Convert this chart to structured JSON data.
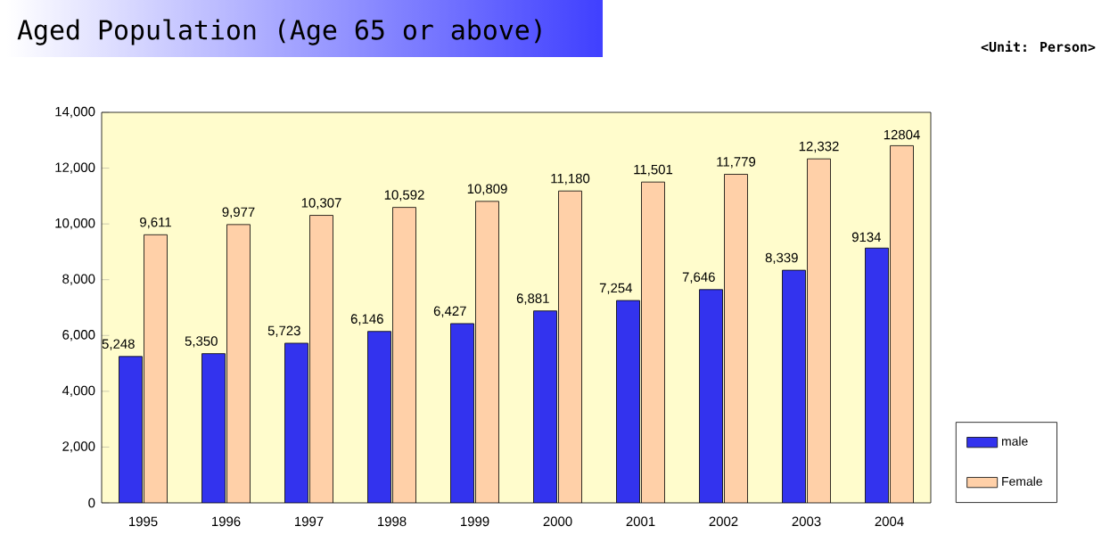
{
  "chart_data": {
    "type": "bar",
    "title": "Aged Population (Age 65 or above)",
    "annotations": [
      "<Unit: Person>"
    ],
    "categories": [
      "1995",
      "1996",
      "1997",
      "1998",
      "1999",
      "2000",
      "2001",
      "2002",
      "2003",
      "2004"
    ],
    "series": [
      {
        "name": "male",
        "color": "#3333ee",
        "values": [
          5248,
          5350,
          5723,
          6146,
          6427,
          6881,
          7254,
          7646,
          8339,
          9134
        ],
        "value_labels": [
          "5,248",
          "5,350",
          "5,723",
          "6,146",
          "6,427",
          "6,881",
          "7,254",
          "7,646",
          "8,339",
          "9134"
        ]
      },
      {
        "name": "Female",
        "color": "#ffd0a8",
        "values": [
          9611,
          9977,
          10307,
          10592,
          10809,
          11180,
          11501,
          11779,
          12332,
          12804
        ],
        "value_labels": [
          "9,611",
          "9,977",
          "10,307",
          "10,592",
          "10,809",
          "11,180",
          "11,501",
          "11,779",
          "12,332",
          "12804"
        ]
      }
    ],
    "ylim": [
      0,
      14000
    ],
    "yticks": [
      0,
      {
        "value": 2000,
        "label": "2,000"
      },
      {
        "value": 4000,
        "label": "4,000"
      },
      {
        "value": 6000,
        "label": "6,000"
      },
      {
        "value": 8000,
        "label": "8,000"
      },
      {
        "value": 10000,
        "label": "10,000"
      },
      {
        "value": 12000,
        "label": "12,000"
      },
      {
        "value": 14000,
        "label": "14,000"
      }
    ],
    "grid": false,
    "legend": "right"
  }
}
